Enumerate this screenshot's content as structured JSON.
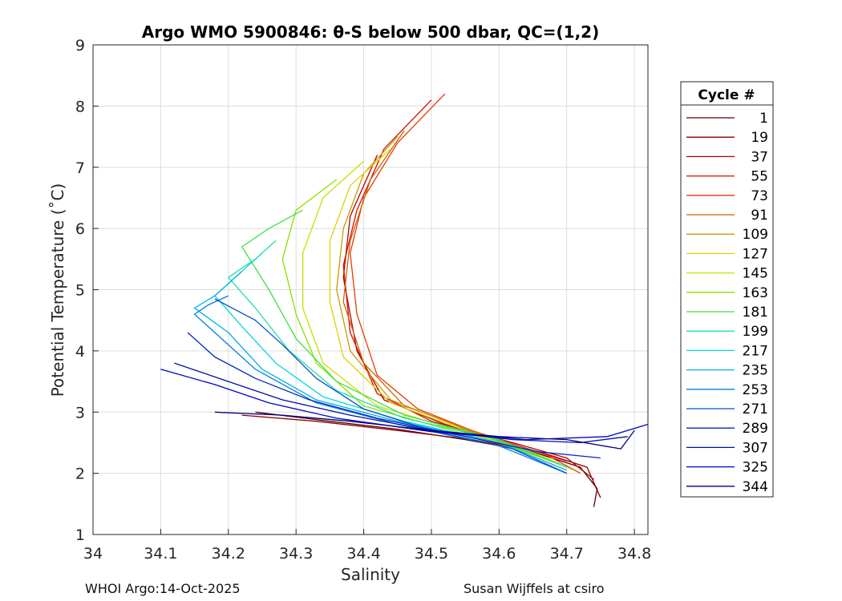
{
  "chart_data": {
    "type": "line",
    "title": "Argo WMO 5900846: θ-S below 500 dbar,  QC=(1,2)",
    "xlabel": "Salinity",
    "ylabel": "Potential Temperature (˚C)",
    "xlim": [
      34.0,
      34.82
    ],
    "ylim": [
      1,
      9
    ],
    "xticks": [
      "34",
      "34.1",
      "34.2",
      "34.3",
      "34.4",
      "34.5",
      "34.6",
      "34.7",
      "34.8"
    ],
    "yticks": [
      "1",
      "2",
      "3",
      "4",
      "5",
      "6",
      "7",
      "8",
      "9"
    ],
    "grid": true,
    "legend": {
      "title": "Cycle #",
      "placement": "outside-right",
      "entries": [
        {
          "label": "1",
          "color": "#5a0000"
        },
        {
          "label": "19",
          "color": "#8b0000"
        },
        {
          "label": "37",
          "color": "#b30000"
        },
        {
          "label": "55",
          "color": "#d40f00"
        },
        {
          "label": "73",
          "color": "#e83a00"
        },
        {
          "label": "91",
          "color": "#cc6600"
        },
        {
          "label": "109",
          "color": "#cc9900"
        },
        {
          "label": "127",
          "color": "#e0d000"
        },
        {
          "label": "145",
          "color": "#c8e000"
        },
        {
          "label": "163",
          "color": "#8ce000"
        },
        {
          "label": "181",
          "color": "#40e040"
        },
        {
          "label": "199",
          "color": "#20e0a0"
        },
        {
          "label": "217",
          "color": "#00d8d8"
        },
        {
          "label": "235",
          "color": "#00b0e8"
        },
        {
          "label": "253",
          "color": "#0080e0"
        },
        {
          "label": "271",
          "color": "#0050d0"
        },
        {
          "label": "289",
          "color": "#0028c0"
        },
        {
          "label": "307",
          "color": "#0010a0"
        },
        {
          "label": "325",
          "color": "#0000c8"
        },
        {
          "label": "344",
          "color": "#000080"
        }
      ]
    },
    "series": [
      {
        "name": "1",
        "color": "#5a0000",
        "points": [
          [
            34.24,
            3.0
          ],
          [
            34.35,
            2.85
          ],
          [
            34.45,
            2.72
          ],
          [
            34.55,
            2.55
          ],
          [
            34.65,
            2.35
          ],
          [
            34.72,
            2.1
          ],
          [
            34.745,
            1.75
          ],
          [
            34.74,
            1.45
          ]
        ]
      },
      {
        "name": "19",
        "color": "#8b0000",
        "points": [
          [
            34.22,
            2.95
          ],
          [
            34.33,
            2.85
          ],
          [
            34.45,
            2.7
          ],
          [
            34.56,
            2.55
          ],
          [
            34.66,
            2.35
          ],
          [
            34.73,
            2.1
          ],
          [
            34.75,
            1.6
          ]
        ]
      },
      {
        "name": "37",
        "color": "#b30000",
        "points": [
          [
            34.42,
            7.2
          ],
          [
            34.38,
            6.2
          ],
          [
            34.37,
            5.2
          ],
          [
            34.39,
            4.0
          ],
          [
            34.43,
            3.2
          ],
          [
            34.52,
            2.8
          ],
          [
            34.62,
            2.5
          ],
          [
            34.7,
            2.25
          ],
          [
            34.74,
            1.9
          ]
        ]
      },
      {
        "name": "55",
        "color": "#d40f00",
        "points": [
          [
            34.5,
            8.1
          ],
          [
            34.43,
            7.3
          ],
          [
            34.39,
            6.3
          ],
          [
            34.37,
            5.4
          ],
          [
            34.38,
            4.3
          ],
          [
            34.42,
            3.3
          ],
          [
            34.5,
            2.85
          ],
          [
            34.6,
            2.55
          ],
          [
            34.7,
            2.2
          ]
        ]
      },
      {
        "name": "73",
        "color": "#e83a00",
        "points": [
          [
            34.52,
            8.2
          ],
          [
            34.45,
            7.4
          ],
          [
            34.4,
            6.5
          ],
          [
            34.38,
            5.6
          ],
          [
            34.39,
            4.6
          ],
          [
            34.42,
            3.6
          ],
          [
            34.48,
            3.05
          ],
          [
            34.56,
            2.7
          ],
          [
            34.67,
            2.3
          ],
          [
            34.72,
            2.0
          ]
        ]
      },
      {
        "name": "91",
        "color": "#cc6600",
        "points": [
          [
            34.46,
            7.6
          ],
          [
            34.41,
            6.8
          ],
          [
            34.38,
            5.8
          ],
          [
            34.37,
            4.8
          ],
          [
            34.4,
            3.8
          ],
          [
            34.46,
            3.1
          ],
          [
            34.56,
            2.7
          ],
          [
            34.66,
            2.3
          ]
        ]
      },
      {
        "name": "109",
        "color": "#cc9900",
        "points": [
          [
            34.45,
            7.5
          ],
          [
            34.4,
            6.9
          ],
          [
            34.37,
            6.0
          ],
          [
            34.36,
            5.0
          ],
          [
            34.38,
            4.0
          ],
          [
            34.44,
            3.2
          ],
          [
            34.55,
            2.72
          ],
          [
            34.66,
            2.3
          ]
        ]
      },
      {
        "name": "127",
        "color": "#e0d000",
        "points": [
          [
            34.44,
            7.3
          ],
          [
            34.38,
            6.7
          ],
          [
            34.35,
            5.8
          ],
          [
            34.35,
            4.8
          ],
          [
            34.37,
            3.9
          ],
          [
            34.44,
            3.15
          ],
          [
            34.55,
            2.7
          ],
          [
            34.65,
            2.3
          ],
          [
            34.7,
            2.1
          ]
        ]
      },
      {
        "name": "145",
        "color": "#c8e000",
        "points": [
          [
            34.4,
            7.1
          ],
          [
            34.34,
            6.5
          ],
          [
            34.31,
            5.6
          ],
          [
            34.31,
            4.7
          ],
          [
            34.34,
            3.8
          ],
          [
            34.42,
            3.1
          ],
          [
            34.54,
            2.7
          ],
          [
            34.66,
            2.3
          ],
          [
            34.71,
            2.05
          ]
        ]
      },
      {
        "name": "163",
        "color": "#8ce000",
        "points": [
          [
            34.36,
            6.8
          ],
          [
            34.3,
            6.3
          ],
          [
            34.28,
            5.5
          ],
          [
            34.3,
            4.6
          ],
          [
            34.33,
            3.8
          ],
          [
            34.4,
            3.1
          ],
          [
            34.53,
            2.7
          ],
          [
            34.66,
            2.3
          ]
        ]
      },
      {
        "name": "181",
        "color": "#40e040",
        "points": [
          [
            34.31,
            6.3
          ],
          [
            34.26,
            6.0
          ],
          [
            34.22,
            5.7
          ],
          [
            34.26,
            5.0
          ],
          [
            34.3,
            4.2
          ],
          [
            34.36,
            3.5
          ],
          [
            34.46,
            2.95
          ],
          [
            34.58,
            2.6
          ],
          [
            34.69,
            2.15
          ]
        ]
      },
      {
        "name": "199",
        "color": "#20e0a0",
        "points": [
          [
            34.27,
            5.8
          ],
          [
            34.24,
            5.5
          ],
          [
            34.2,
            5.2
          ],
          [
            34.24,
            4.7
          ],
          [
            34.29,
            4.0
          ],
          [
            34.36,
            3.35
          ],
          [
            34.46,
            2.9
          ],
          [
            34.6,
            2.55
          ],
          [
            34.7,
            2.1
          ]
        ]
      },
      {
        "name": "217",
        "color": "#00d8d8",
        "points": [
          [
            34.25,
            5.6
          ],
          [
            34.21,
            5.2
          ],
          [
            34.18,
            4.9
          ],
          [
            34.22,
            4.4
          ],
          [
            34.27,
            3.8
          ],
          [
            34.34,
            3.25
          ],
          [
            34.46,
            2.85
          ],
          [
            34.6,
            2.5
          ],
          [
            34.7,
            2.05
          ]
        ]
      },
      {
        "name": "235",
        "color": "#00b0e8",
        "points": [
          [
            34.22,
            5.3
          ],
          [
            34.18,
            4.9
          ],
          [
            34.15,
            4.7
          ],
          [
            34.2,
            4.3
          ],
          [
            34.25,
            3.7
          ],
          [
            34.33,
            3.2
          ],
          [
            34.45,
            2.85
          ],
          [
            34.6,
            2.5
          ],
          [
            34.7,
            2.05
          ]
        ]
      },
      {
        "name": "253",
        "color": "#0080e0",
        "points": [
          [
            34.2,
            4.9
          ],
          [
            34.17,
            4.75
          ],
          [
            34.15,
            4.6
          ],
          [
            34.19,
            4.2
          ],
          [
            34.24,
            3.7
          ],
          [
            34.33,
            3.15
          ],
          [
            34.45,
            2.8
          ],
          [
            34.6,
            2.45
          ],
          [
            34.7,
            2.0
          ]
        ]
      },
      {
        "name": "271",
        "color": "#0050d0",
        "points": [
          [
            34.18,
            4.85
          ],
          [
            34.24,
            4.5
          ],
          [
            34.28,
            4.1
          ],
          [
            34.33,
            3.55
          ],
          [
            34.4,
            3.05
          ],
          [
            34.5,
            2.7
          ],
          [
            34.62,
            2.4
          ],
          [
            34.7,
            2.0
          ]
        ]
      },
      {
        "name": "289",
        "color": "#0028c0",
        "points": [
          [
            34.14,
            4.3
          ],
          [
            34.18,
            3.9
          ],
          [
            34.24,
            3.55
          ],
          [
            34.32,
            3.2
          ],
          [
            34.42,
            2.9
          ],
          [
            34.55,
            2.6
          ],
          [
            34.66,
            2.35
          ],
          [
            34.75,
            2.25
          ]
        ]
      },
      {
        "name": "307",
        "color": "#0010a0",
        "points": [
          [
            34.12,
            3.8
          ],
          [
            34.2,
            3.5
          ],
          [
            34.28,
            3.2
          ],
          [
            34.38,
            2.95
          ],
          [
            34.5,
            2.7
          ],
          [
            34.62,
            2.55
          ],
          [
            34.72,
            2.5
          ],
          [
            34.79,
            2.6
          ]
        ]
      },
      {
        "name": "325",
        "color": "#0000c8",
        "points": [
          [
            34.1,
            3.7
          ],
          [
            34.18,
            3.45
          ],
          [
            34.26,
            3.15
          ],
          [
            34.36,
            2.9
          ],
          [
            34.5,
            2.68
          ],
          [
            34.64,
            2.55
          ],
          [
            34.76,
            2.6
          ],
          [
            34.82,
            2.8
          ]
        ]
      },
      {
        "name": "344",
        "color": "#000080",
        "points": [
          [
            34.18,
            3.0
          ],
          [
            34.28,
            2.95
          ],
          [
            34.38,
            2.85
          ],
          [
            34.5,
            2.7
          ],
          [
            34.6,
            2.6
          ],
          [
            34.7,
            2.55
          ],
          [
            34.78,
            2.4
          ],
          [
            34.8,
            2.7
          ]
        ]
      }
    ]
  },
  "footer": {
    "left": "WHOI Argo:14-Oct-2025",
    "right": "Susan Wijffels at csiro"
  }
}
